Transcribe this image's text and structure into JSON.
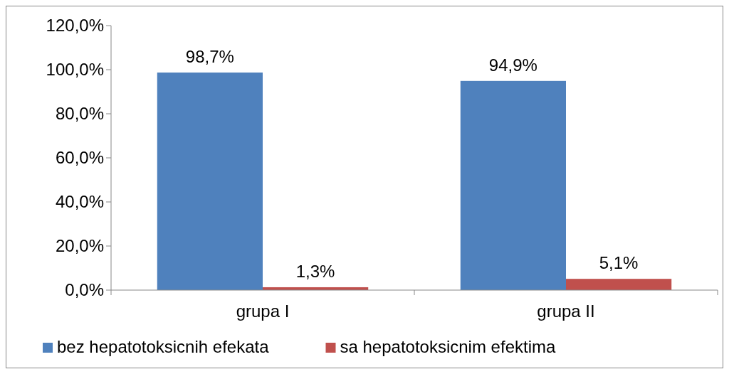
{
  "chart_data": {
    "type": "bar",
    "categories": [
      "grupa I",
      "grupa II"
    ],
    "series": [
      {
        "name": "bez hepatotoksicnih efekata",
        "color": "#4f81bd",
        "values": [
          98.7,
          94.9
        ],
        "value_labels": [
          "98,7%",
          "94,9%"
        ]
      },
      {
        "name": "sa hepatotoksicnim efektima",
        "color": "#c0504d",
        "values": [
          1.3,
          5.1
        ],
        "value_labels": [
          "1,3%",
          "5,1%"
        ]
      }
    ],
    "ylim": [
      0,
      120
    ],
    "yticks": [
      {
        "value": 0,
        "label": "0,0%"
      },
      {
        "value": 20,
        "label": "20,0%"
      },
      {
        "value": 40,
        "label": "40,0%"
      },
      {
        "value": 60,
        "label": "60,0%"
      },
      {
        "value": 80,
        "label": "80,0%"
      },
      {
        "value": 100,
        "label": "100,0%"
      },
      {
        "value": 120,
        "label": "120,0%"
      }
    ],
    "grid": false,
    "legend": "bottom"
  }
}
